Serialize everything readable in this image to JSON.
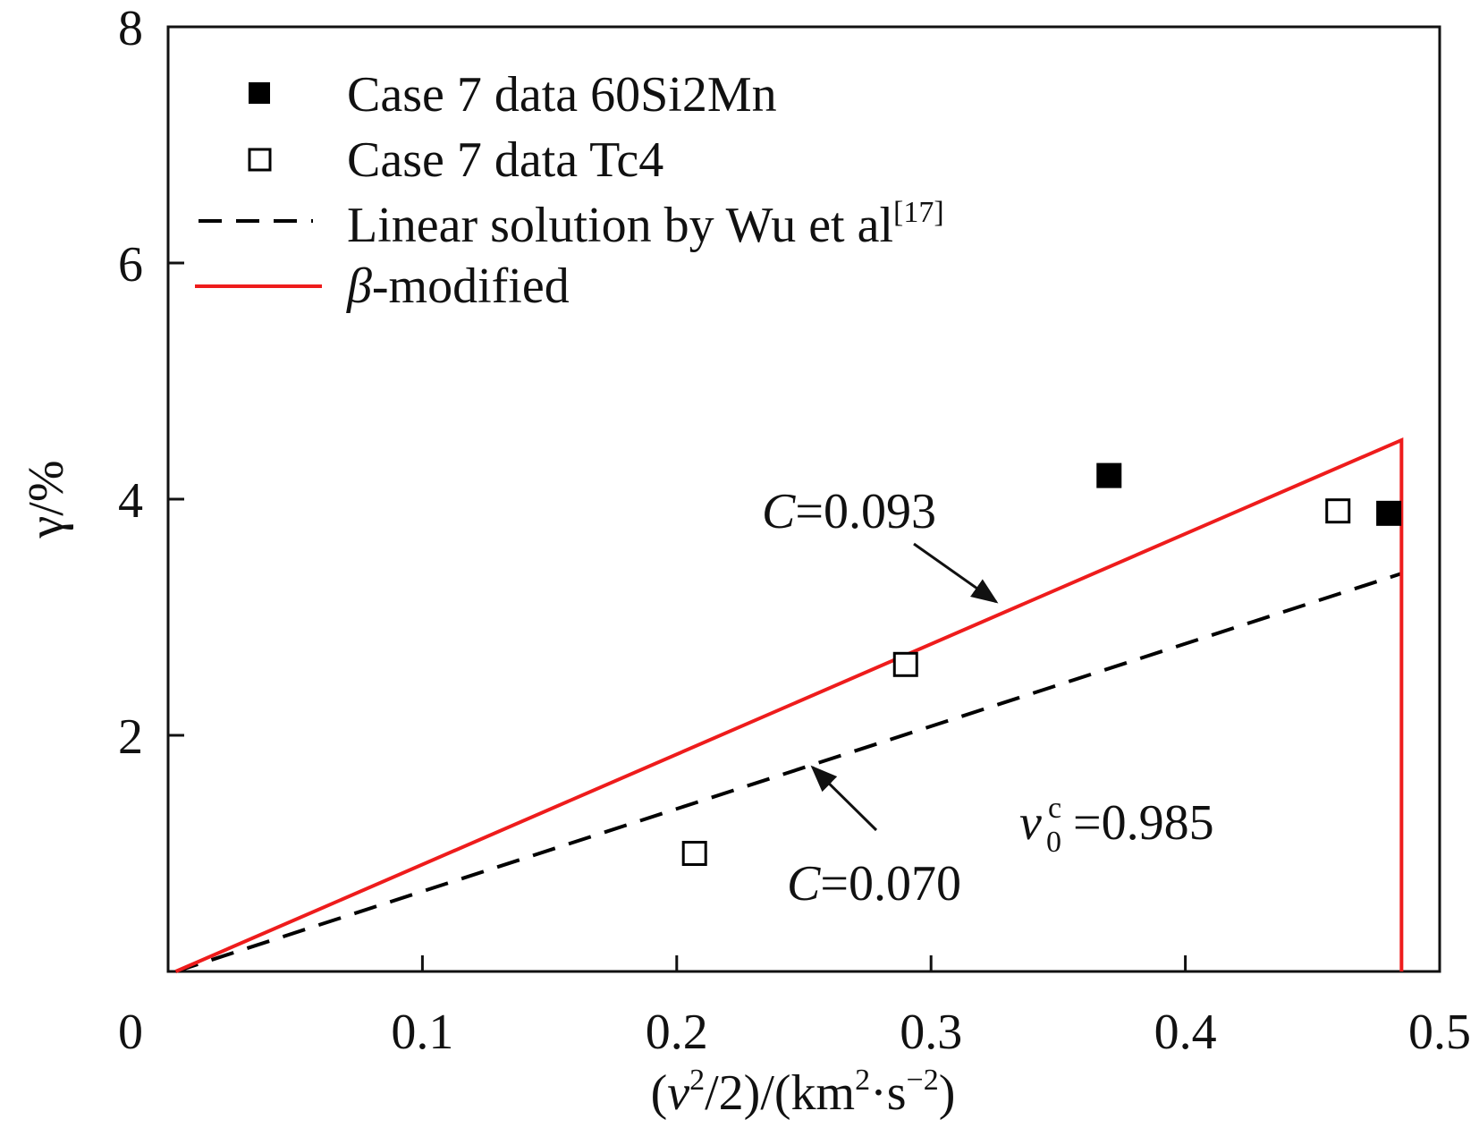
{
  "chart_data": {
    "type": "scatter",
    "xlabel": {
      "open": "(",
      "v": "v",
      "v_exp": "2",
      "mid": "/2)/(km",
      "km_exp": "2",
      "dot_s": "·s",
      "s_exp": "−2",
      "close": ")"
    },
    "ylabel": "γ/%",
    "xlim": [
      0,
      0.5
    ],
    "ylim": [
      0,
      8
    ],
    "x_ticks": [
      "0",
      "0.1",
      "0.2",
      "0.3",
      "0.4",
      "0.5"
    ],
    "y_ticks": [
      "2",
      "4",
      "6",
      "8"
    ],
    "x_tick_values": [
      0,
      0.1,
      0.2,
      0.3,
      0.4,
      0.5
    ],
    "y_tick_values": [
      2,
      4,
      6,
      8
    ],
    "grid": false,
    "legend_placement": "top-left",
    "series": [
      {
        "name": "Case 7 data 60Si2Mn",
        "kind": "scatter",
        "marker": "filled-square",
        "color": "#000000",
        "points": [
          {
            "x": 0.37,
            "y": 4.2
          },
          {
            "x": 0.48,
            "y": 3.88
          }
        ]
      },
      {
        "name": "Case 7 data Tc4",
        "kind": "scatter",
        "marker": "open-square",
        "color": "#000000",
        "points": [
          {
            "x": 0.207,
            "y": 1.0
          },
          {
            "x": 0.29,
            "y": 2.6
          },
          {
            "x": 0.46,
            "y": 3.9
          }
        ]
      },
      {
        "name": "Linear solution by Wu et al",
        "name_ref": "[17]",
        "kind": "line",
        "dash": true,
        "color": "#000000",
        "points": [
          {
            "x": 0.003,
            "y": 0
          },
          {
            "x": 0.485,
            "y": 3.37
          }
        ]
      },
      {
        "name_prefix": "β",
        "name": "-modified",
        "kind": "line",
        "dash": false,
        "color": "#ee1c1c",
        "points": [
          {
            "x": 0.003,
            "y": 0
          },
          {
            "x": 0.485,
            "y": 4.5
          },
          {
            "x": 0.485,
            "y": 0
          }
        ]
      }
    ],
    "annotations": [
      {
        "var": "C",
        "text": "=0.093",
        "arrow_to": {
          "x": 0.327,
          "y": 3.1
        }
      },
      {
        "var": "C",
        "text": "=0.070",
        "arrow_to": {
          "x": 0.252,
          "y": 1.76
        }
      },
      {
        "var": "v",
        "sub": "0",
        "sup": "c",
        "text": "=0.985"
      }
    ]
  }
}
